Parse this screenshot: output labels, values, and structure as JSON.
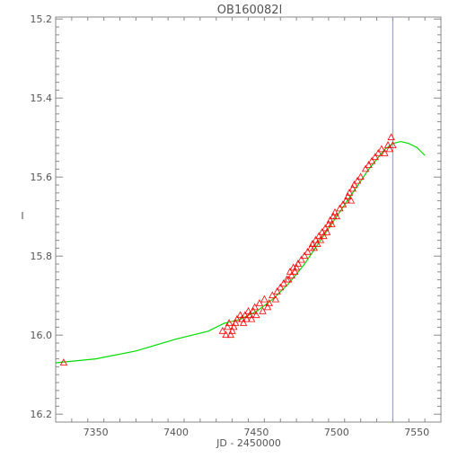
{
  "chart_data": {
    "type": "scatter",
    "title": "OB160082l",
    "xlabel": "JD - 2450000",
    "ylabel": "I",
    "xlim": [
      7325,
      7565
    ],
    "ylim": [
      16.22,
      15.195
    ],
    "y_inverted": true,
    "grid": false,
    "x_ticks": [
      7350,
      7400,
      7450,
      7500,
      7550
    ],
    "y_ticks": [
      15.2,
      15.4,
      15.6,
      15.8,
      16.0,
      16.2
    ],
    "x_tick_labels": [
      "7350",
      "7400",
      "7450",
      "7500",
      "7550"
    ],
    "y_tick_labels": [
      "15.2",
      "15.4",
      "15.6",
      "15.8",
      "16.0",
      "16.2"
    ],
    "vertical_marker_x": 7535,
    "colors": {
      "axes": "#888888",
      "text": "#555555",
      "points": "#ff0000",
      "model": "#00dd00",
      "marker": "#8888ff"
    },
    "series": [
      {
        "kind": "observations",
        "marker": "triangle",
        "x": [
          7330,
          7429,
          7431,
          7432,
          7433,
          7434,
          7435,
          7436,
          7437,
          7438,
          7440,
          7441,
          7442,
          7443,
          7444,
          7445,
          7446,
          7447,
          7448,
          7449,
          7450,
          7452,
          7454,
          7455,
          7457,
          7458,
          7460,
          7462,
          7463,
          7465,
          7467,
          7469,
          7470,
          7471,
          7472,
          7473,
          7474,
          7475,
          7476,
          7478,
          7480,
          7482,
          7484,
          7485,
          7486,
          7487,
          7488,
          7489,
          7490,
          7491,
          7492,
          7493,
          7494,
          7495,
          7496,
          7497,
          7498,
          7499,
          7500,
          7502,
          7504,
          7506,
          7507,
          7508,
          7509,
          7510,
          7511,
          7513,
          7515,
          7518,
          7520,
          7522,
          7524,
          7526,
          7528,
          7530,
          7532,
          7533,
          7534,
          7535
        ],
        "y": [
          16.07,
          15.99,
          16.0,
          15.98,
          15.97,
          16.0,
          15.99,
          15.98,
          15.97,
          15.96,
          15.95,
          15.96,
          15.97,
          15.95,
          15.96,
          15.94,
          15.95,
          15.96,
          15.94,
          15.93,
          15.95,
          15.92,
          15.94,
          15.91,
          15.93,
          15.92,
          15.9,
          15.91,
          15.89,
          15.88,
          15.87,
          15.86,
          15.86,
          15.84,
          15.85,
          15.83,
          15.84,
          15.83,
          15.82,
          15.81,
          15.8,
          15.79,
          15.78,
          15.77,
          15.78,
          15.76,
          15.77,
          15.75,
          15.76,
          15.74,
          15.75,
          15.73,
          15.74,
          15.72,
          15.71,
          15.72,
          15.7,
          15.69,
          15.7,
          15.68,
          15.67,
          15.66,
          15.65,
          15.64,
          15.66,
          15.63,
          15.62,
          15.61,
          15.6,
          15.58,
          15.57,
          15.56,
          15.55,
          15.54,
          15.53,
          15.54,
          15.52,
          15.53,
          15.5,
          15.52
        ]
      },
      {
        "kind": "model",
        "line": true,
        "x": [
          7325,
          7350,
          7375,
          7400,
          7420,
          7430,
          7440,
          7450,
          7460,
          7470,
          7480,
          7490,
          7500,
          7510,
          7520,
          7530,
          7535,
          7540,
          7545,
          7550,
          7555
        ],
        "y": [
          16.07,
          16.06,
          16.04,
          16.01,
          15.99,
          15.97,
          15.96,
          15.94,
          15.91,
          15.87,
          15.82,
          15.76,
          15.7,
          15.64,
          15.58,
          15.53,
          15.515,
          15.51,
          15.515,
          15.525,
          15.545
        ]
      }
    ]
  }
}
